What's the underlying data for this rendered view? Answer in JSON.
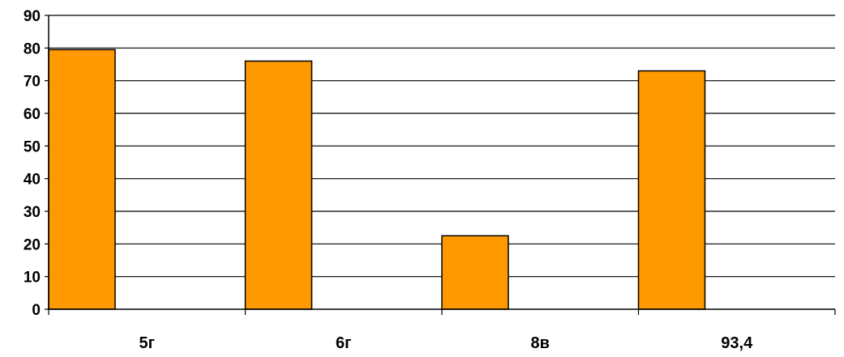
{
  "chart_data": {
    "type": "bar",
    "title": "",
    "xlabel": "",
    "ylabel": "",
    "categories": [
      "5г",
      "6г",
      "8в",
      "93,4"
    ],
    "values": [
      79.5,
      76,
      22.5,
      73
    ],
    "ylim": [
      0,
      90
    ],
    "yticks": [
      "0",
      "10",
      "20",
      "30",
      "40",
      "50",
      "60",
      "70",
      "80",
      "90"
    ],
    "grid": true,
    "legend": "none",
    "bar_color": "#FF9900",
    "bar_edge_color": "#000000"
  }
}
